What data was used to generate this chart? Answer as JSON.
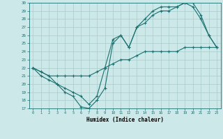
{
  "xlabel": "Humidex (Indice chaleur)",
  "bg_color": "#cce8e8",
  "grid_color": "#aacccc",
  "line_color": "#1a7070",
  "ylim": [
    17,
    30
  ],
  "xlim": [
    -0.5,
    23.5
  ],
  "yticks": [
    17,
    18,
    19,
    20,
    21,
    22,
    23,
    24,
    25,
    26,
    27,
    28,
    29,
    30
  ],
  "xticks": [
    0,
    1,
    2,
    3,
    4,
    5,
    6,
    7,
    8,
    9,
    10,
    11,
    12,
    13,
    14,
    15,
    16,
    17,
    18,
    19,
    20,
    21,
    22,
    23
  ],
  "line1_x": [
    0,
    1,
    2,
    3,
    4,
    5,
    6,
    7,
    8,
    9,
    10,
    11,
    12,
    13,
    14,
    15,
    16,
    17,
    18,
    19,
    20,
    21,
    22,
    23
  ],
  "line1_y": [
    22,
    21,
    20.5,
    20,
    19,
    18.5,
    17.2,
    17,
    18,
    19.5,
    25,
    26,
    24.5,
    27,
    27.5,
    28.5,
    29,
    29,
    29.5,
    30,
    30,
    28.5,
    26,
    24.5
  ],
  "line2_x": [
    0,
    1,
    2,
    3,
    4,
    5,
    6,
    7,
    8,
    9,
    10,
    11,
    12,
    13,
    14,
    15,
    16,
    17,
    18,
    19,
    20,
    21,
    22,
    23
  ],
  "line2_y": [
    22,
    21.5,
    21,
    21,
    21,
    21,
    21,
    21,
    21.5,
    22,
    22.5,
    23,
    23,
    23.5,
    24,
    24,
    24,
    24,
    24,
    24.5,
    24.5,
    24.5,
    24.5,
    24.5
  ],
  "line3_x": [
    0,
    1,
    2,
    3,
    4,
    5,
    6,
    7,
    8,
    9,
    10,
    11,
    12,
    13,
    14,
    15,
    16,
    17,
    18,
    19,
    20,
    21,
    22,
    23
  ],
  "line3_y": [
    22,
    21.5,
    21,
    20,
    19.5,
    19,
    18.5,
    17.5,
    18.5,
    22,
    25.5,
    26,
    24.5,
    27,
    28,
    29,
    29.5,
    29.5,
    29.5,
    30,
    29.5,
    28,
    26,
    24.5
  ]
}
